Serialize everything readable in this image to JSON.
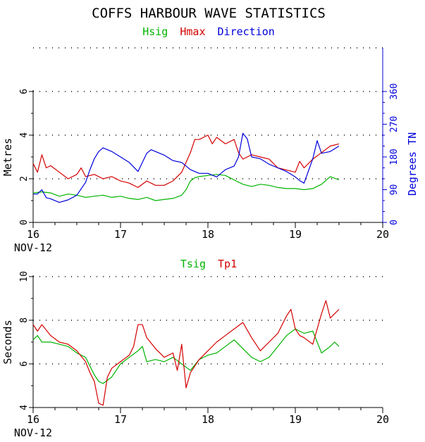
{
  "title": "COFFS HARBOUR WAVE STATISTICS",
  "colors": {
    "green": "#00b400",
    "red": "#d40000",
    "blue": "#0000dc",
    "axis": "#000000",
    "grid": "#000000"
  },
  "chart_data": [
    {
      "type": "line",
      "legend": [
        "Hsig",
        "Hmax",
        "Direction"
      ],
      "xlim": [
        16,
        20
      ],
      "xticks": [
        "16",
        "17",
        "18",
        "19",
        "20"
      ],
      "xsub": "NOV-12",
      "ylabel": "Metres",
      "ylim": [
        0,
        6
      ],
      "yticks": [
        "0",
        "2",
        "4",
        "6"
      ],
      "y2label": "Degrees TN",
      "y2lim": [
        0,
        360
      ],
      "y2ticks": [
        "0",
        "90",
        "180",
        "270",
        "360"
      ],
      "grid": "dotted horizontal",
      "series": [
        {
          "name": "Hsig",
          "color": "green",
          "axis": "left",
          "x": [
            16.0,
            16.1,
            16.2,
            16.3,
            16.4,
            16.5,
            16.6,
            16.7,
            16.8,
            16.9,
            17.0,
            17.1,
            17.2,
            17.3,
            17.4,
            17.5,
            17.6,
            17.7,
            17.75,
            17.8,
            17.85,
            17.9,
            18.0,
            18.1,
            18.2,
            18.3,
            18.4,
            18.5,
            18.6,
            18.7,
            18.8,
            18.9,
            19.0,
            19.1,
            19.2,
            19.3,
            19.4,
            19.5
          ],
          "y": [
            1.35,
            1.4,
            1.35,
            1.2,
            1.3,
            1.25,
            1.15,
            1.2,
            1.25,
            1.15,
            1.2,
            1.1,
            1.05,
            1.15,
            1.0,
            1.05,
            1.1,
            1.25,
            1.5,
            1.9,
            2.05,
            2.1,
            2.15,
            2.2,
            2.15,
            1.95,
            1.75,
            1.65,
            1.75,
            1.7,
            1.6,
            1.55,
            1.55,
            1.5,
            1.55,
            1.75,
            2.1,
            1.95
          ]
        },
        {
          "name": "Hmax",
          "color": "red",
          "axis": "left",
          "x": [
            16.0,
            16.05,
            16.1,
            16.15,
            16.2,
            16.3,
            16.4,
            16.5,
            16.55,
            16.6,
            16.7,
            16.8,
            16.9,
            17.0,
            17.1,
            17.2,
            17.3,
            17.4,
            17.5,
            17.6,
            17.7,
            17.8,
            17.85,
            17.9,
            18.0,
            18.05,
            18.1,
            18.2,
            18.3,
            18.35,
            18.4,
            18.5,
            18.6,
            18.7,
            18.8,
            18.9,
            19.0,
            19.05,
            19.1,
            19.2,
            19.3,
            19.4,
            19.5
          ],
          "y": [
            2.7,
            2.3,
            3.1,
            2.5,
            2.6,
            2.3,
            2.0,
            2.2,
            2.5,
            2.1,
            2.2,
            2.0,
            2.1,
            1.9,
            1.8,
            1.6,
            1.9,
            1.7,
            1.7,
            1.9,
            2.3,
            3.2,
            3.8,
            3.8,
            4.0,
            3.6,
            3.9,
            3.6,
            3.8,
            3.2,
            2.9,
            3.1,
            3.0,
            2.9,
            2.5,
            2.4,
            2.3,
            2.8,
            2.5,
            2.9,
            3.2,
            3.5,
            3.6
          ]
        },
        {
          "name": "Direction",
          "color": "blue",
          "axis": "right",
          "x": [
            16.0,
            16.05,
            16.1,
            16.15,
            16.2,
            16.3,
            16.4,
            16.5,
            16.6,
            16.65,
            16.7,
            16.75,
            16.8,
            16.9,
            17.0,
            17.1,
            17.2,
            17.3,
            17.35,
            17.4,
            17.5,
            17.6,
            17.7,
            17.8,
            17.9,
            18.0,
            18.1,
            18.2,
            18.3,
            18.35,
            18.4,
            18.45,
            18.5,
            18.6,
            18.7,
            18.8,
            18.9,
            19.0,
            19.05,
            19.1,
            19.2,
            19.25,
            19.3,
            19.4,
            19.5
          ],
          "y": [
            78,
            78,
            90,
            68,
            65,
            55,
            62,
            75,
            110,
            145,
            175,
            195,
            205,
            195,
            180,
            165,
            140,
            190,
            200,
            195,
            185,
            170,
            165,
            145,
            135,
            135,
            125,
            145,
            155,
            180,
            245,
            230,
            180,
            175,
            160,
            150,
            140,
            125,
            115,
            108,
            175,
            225,
            190,
            195,
            210
          ]
        }
      ]
    },
    {
      "type": "line",
      "legend": [
        "Tsig",
        "Tp1"
      ],
      "xlim": [
        16,
        20
      ],
      "xticks": [
        "16",
        "17",
        "18",
        "19",
        "20"
      ],
      "xsub": "NOV-12",
      "ylabel": "Seconds",
      "ylim": [
        4,
        10
      ],
      "yticks": [
        "4",
        "6",
        "8",
        "10"
      ],
      "grid": "dotted horizontal",
      "series": [
        {
          "name": "Tsig",
          "color": "green",
          "x": [
            16.0,
            16.05,
            16.1,
            16.2,
            16.3,
            16.4,
            16.5,
            16.6,
            16.7,
            16.75,
            16.8,
            16.9,
            17.0,
            17.1,
            17.2,
            17.25,
            17.3,
            17.4,
            17.5,
            17.6,
            17.7,
            17.8,
            17.9,
            18.0,
            18.1,
            18.2,
            18.3,
            18.4,
            18.5,
            18.6,
            18.7,
            18.8,
            18.9,
            19.0,
            19.1,
            19.2,
            19.3,
            19.4,
            19.45,
            19.5
          ],
          "y": [
            7.1,
            7.3,
            7.0,
            7.0,
            6.9,
            6.8,
            6.5,
            6.3,
            5.5,
            5.2,
            5.1,
            5.4,
            6.0,
            6.3,
            6.6,
            6.8,
            6.1,
            6.2,
            6.1,
            6.3,
            6.0,
            5.7,
            6.2,
            6.4,
            6.5,
            6.8,
            7.1,
            6.7,
            6.3,
            6.1,
            6.3,
            6.8,
            7.3,
            7.6,
            7.4,
            7.5,
            6.5,
            6.8,
            7.0,
            6.8
          ]
        },
        {
          "name": "Tp1",
          "color": "red",
          "x": [
            16.0,
            16.05,
            16.1,
            16.2,
            16.3,
            16.4,
            16.5,
            16.6,
            16.65,
            16.7,
            16.75,
            16.8,
            16.85,
            16.9,
            17.0,
            17.1,
            17.15,
            17.2,
            17.25,
            17.3,
            17.4,
            17.5,
            17.6,
            17.65,
            17.7,
            17.75,
            17.8,
            17.9,
            18.0,
            18.1,
            18.2,
            18.3,
            18.4,
            18.5,
            18.6,
            18.7,
            18.8,
            18.9,
            18.95,
            19.0,
            19.05,
            19.1,
            19.2,
            19.3,
            19.35,
            19.4,
            19.45,
            19.5
          ],
          "y": [
            7.8,
            7.5,
            7.8,
            7.3,
            7.0,
            6.9,
            6.6,
            6.1,
            5.6,
            5.2,
            4.2,
            4.1,
            5.4,
            5.8,
            6.1,
            6.4,
            6.8,
            7.8,
            7.8,
            7.2,
            6.7,
            6.3,
            6.5,
            5.7,
            6.9,
            4.9,
            5.6,
            6.2,
            6.6,
            7.0,
            7.3,
            7.6,
            7.9,
            7.2,
            6.6,
            7.0,
            7.4,
            8.2,
            8.5,
            7.6,
            7.3,
            7.2,
            6.9,
            8.3,
            8.9,
            8.1,
            8.3,
            8.5
          ]
        }
      ]
    }
  ]
}
